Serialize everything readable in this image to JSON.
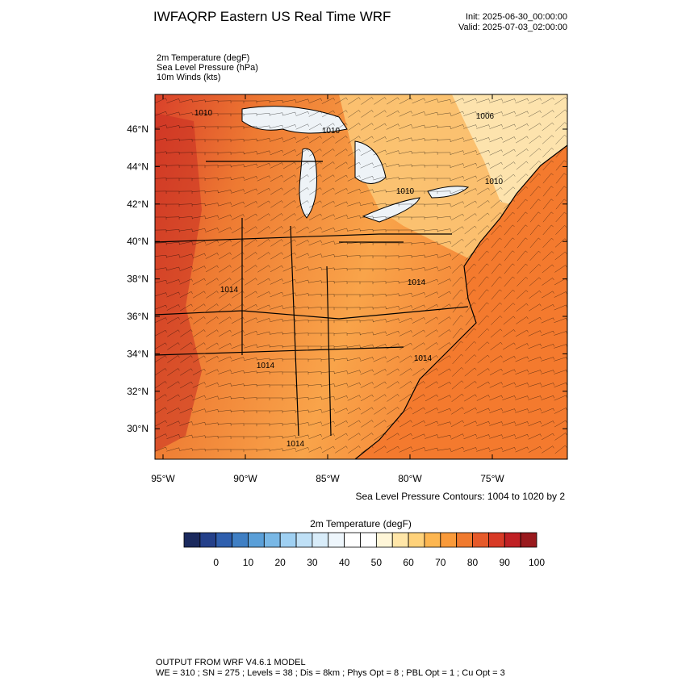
{
  "header": {
    "title": "IWFAQRP Eastern US Real Time WRF",
    "init": "Init: 2025-06-30_00:00:00",
    "valid": "Valid: 2025-07-03_02:00:00"
  },
  "fields": [
    "2m Temperature   (degF)",
    "Sea Level Pressure   (hPa)",
    "10m Winds   (kts)"
  ],
  "map": {
    "lat_ticks": [
      "46°N",
      "44°N",
      "42°N",
      "40°N",
      "38°N",
      "36°N",
      "34°N",
      "32°N",
      "30°N"
    ],
    "lon_ticks": [
      "95°W",
      "90°W",
      "85°W",
      "80°W",
      "75°W"
    ],
    "contour_labels": [
      "1010",
      "1010",
      "1006",
      "1010",
      "1010",
      "1014",
      "1014",
      "1014",
      "1014",
      "1014"
    ]
  },
  "contour_note": "Sea Level Pressure Contours: 1004 to 1020 by 2",
  "colorbar": {
    "title": "2m Temperature  (degF)",
    "colors": [
      "#1b2a5e",
      "#24408a",
      "#2f5fae",
      "#3f7fc4",
      "#5a9fd8",
      "#79b8e6",
      "#9fd0f2",
      "#bfe0f6",
      "#d8ecf9",
      "#eef6fc",
      "#ffffff",
      "#ffffff",
      "#fff6d8",
      "#ffe6a8",
      "#ffd27a",
      "#fdb650",
      "#f99a3a",
      "#f07a2e",
      "#e65a2a",
      "#d83a26",
      "#c02024",
      "#9a1a1e"
    ],
    "labels": [
      "0",
      "10",
      "20",
      "30",
      "40",
      "50",
      "60",
      "70",
      "80",
      "90",
      "100"
    ]
  },
  "footer": {
    "line1": "OUTPUT FROM WRF V4.6.1 MODEL",
    "line2": "WE = 310 ; SN = 275 ; Levels = 38 ; Dis = 8km ; Phys Opt = 8 ; PBL Opt = 1 ; Cu Opt = 3"
  }
}
